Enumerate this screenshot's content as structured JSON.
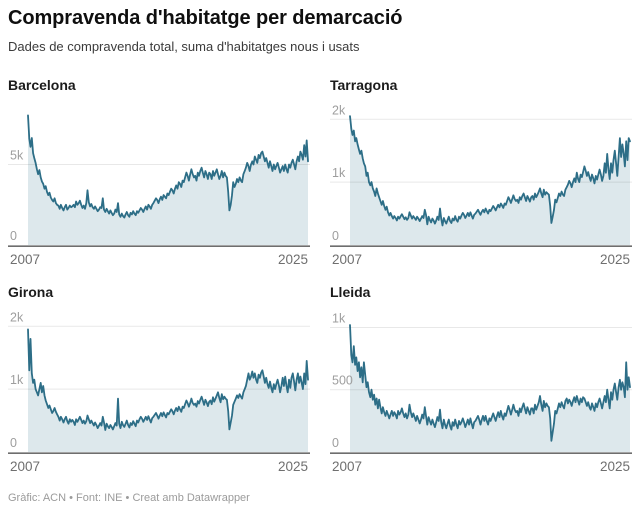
{
  "header": {
    "title": "Compravenda d'habitatge per demarcació",
    "subtitle": "Dades de compravenda total, suma d'habitatges nous i usats"
  },
  "footer": {
    "credit": "Gràfic: ACN • Font: INE • Creat amb Datawrapper"
  },
  "colors": {
    "line": "#2d6e87",
    "fill": "#dde8ec",
    "grid": "rgba(0,0,0,0.09)",
    "axis": "#6e6e6e",
    "tick_label": "#9e9e9e",
    "x_label": "#6f6f6f"
  },
  "chart_data": [
    {
      "type": "area",
      "title": "Barcelona",
      "x_start": "2007",
      "x_end": "2025",
      "x_range_years": [
        2007,
        2025
      ],
      "frequency": "monthly",
      "ymax": 8200,
      "yticks": [
        {
          "value": 5000,
          "label": "5k"
        },
        {
          "value": 0,
          "label": "0"
        }
      ],
      "values": [
        8050,
        6600,
        6100,
        6650,
        5700,
        5400,
        5100,
        4700,
        4400,
        4650,
        4200,
        3950,
        3800,
        3500,
        3650,
        3300,
        3100,
        3250,
        2950,
        2800,
        2700,
        2900,
        2600,
        2500,
        2450,
        2250,
        2500,
        2300,
        2150,
        2350,
        2500,
        2200,
        2300,
        2450,
        2350,
        2400,
        2500,
        2350,
        2700,
        2500,
        2600,
        2750,
        2500,
        2300,
        2450,
        2250,
        2600,
        3400,
        2650,
        2400,
        2550,
        2350,
        2250,
        2400,
        2250,
        2100,
        2200,
        2350,
        2300,
        2900,
        2200,
        2050,
        2250,
        2100,
        1950,
        2150,
        2000,
        1850,
        1950,
        2200,
        2050,
        2600,
        1900,
        1750,
        1950,
        1800,
        1700,
        1900,
        2050,
        1850,
        1750,
        2000,
        1900,
        2100,
        1950,
        1850,
        2100,
        2000,
        2150,
        2300,
        2200,
        2050,
        2250,
        2400,
        2200,
        2500,
        2400,
        2250,
        2500,
        2600,
        2750,
        2900,
        2800,
        2600,
        2850,
        3000,
        2800,
        3100,
        3000,
        2900,
        3200,
        3100,
        3300,
        3500,
        3400,
        3200,
        3500,
        3700,
        3500,
        3900,
        3800,
        3600,
        4000,
        3900,
        4200,
        4500,
        4300,
        4000,
        4400,
        4700,
        4400,
        4200,
        4300,
        4000,
        4500,
        4300,
        4600,
        4800,
        4500,
        4200,
        4600,
        4400,
        4100,
        4500,
        4400,
        4100,
        4600,
        4300,
        4500,
        4700,
        4400,
        4100,
        4300,
        4600,
        4200,
        4500,
        4300,
        4200,
        3300,
        2150,
        2500,
        3100,
        3900,
        3600,
        3800,
        4100,
        3900,
        4200,
        4000,
        3900,
        4400,
        4600,
        4800,
        5100,
        4900,
        4600,
        5000,
        5200,
        5000,
        5500,
        5300,
        5100,
        5600,
        5400,
        5700,
        5800,
        5500,
        5200,
        5400,
        5100,
        4800,
        5200,
        4900,
        4600,
        5000,
        4700,
        4900,
        5100,
        4800,
        4500,
        4700,
        4900,
        4600,
        5000,
        4700,
        4500,
        5000,
        4800,
        5100,
        5300,
        5000,
        4700,
        5200,
        5500,
        5200,
        5800,
        5600,
        5300,
        6200,
        5500,
        6500,
        5200
      ]
    },
    {
      "type": "area",
      "title": "Tarragona",
      "x_start": "2007",
      "x_end": "2025",
      "x_range_years": [
        2007,
        2025
      ],
      "frequency": "monthly",
      "ymax": 2100,
      "yticks": [
        {
          "value": 2000,
          "label": "2k"
        },
        {
          "value": 1000,
          "label": "1k"
        },
        {
          "value": 0,
          "label": "0"
        }
      ],
      "values": [
        2050,
        1850,
        1750,
        1820,
        1650,
        1700,
        1600,
        1520,
        1450,
        1500,
        1380,
        1300,
        1250,
        1100,
        1150,
        1000,
        950,
        1000,
        900,
        850,
        780,
        900,
        820,
        760,
        700,
        640,
        700,
        620,
        560,
        610,
        520,
        470,
        510,
        460,
        420,
        460,
        430,
        390,
        450,
        420,
        460,
        490,
        450,
        410,
        440,
        400,
        430,
        520,
        470,
        420,
        460,
        430,
        400,
        450,
        420,
        380,
        420,
        460,
        430,
        560,
        480,
        330,
        450,
        400,
        360,
        420,
        390,
        340,
        390,
        450,
        400,
        580,
        420,
        310,
        430,
        380,
        340,
        400,
        450,
        380,
        350,
        420,
        390,
        460,
        400,
        370,
        450,
        420,
        470,
        510,
        480,
        430,
        470,
        510,
        460,
        520,
        470,
        420,
        480,
        500,
        530,
        560,
        520,
        480,
        530,
        560,
        520,
        580,
        540,
        500,
        560,
        540,
        580,
        620,
        590,
        550,
        600,
        640,
        600,
        660,
        630,
        590,
        660,
        640,
        700,
        760,
        720,
        670,
        730,
        790,
        730,
        700,
        720,
        670,
        760,
        720,
        780,
        820,
        760,
        700,
        780,
        740,
        690,
        760,
        780,
        720,
        820,
        760,
        800,
        850,
        900,
        820,
        760,
        880,
        800,
        840,
        820,
        800,
        620,
        350,
        450,
        560,
        720,
        680,
        750,
        820,
        780,
        850,
        800,
        780,
        880,
        920,
        960,
        1020,
        980,
        920,
        1000,
        1060,
        1000,
        1150,
        1050,
        1000,
        1120,
        1080,
        1160,
        1250,
        1180,
        1100,
        1160,
        1080,
        1020,
        1120,
        1060,
        980,
        1100,
        1040,
        1120,
        1200,
        1120,
        1020,
        1100,
        1300,
        1150,
        1450,
        1200,
        1050,
        1300,
        1150,
        1350,
        1500,
        1300,
        1100,
        1400,
        1700,
        1400,
        1600,
        1450,
        1250,
        1650,
        1350,
        1700,
        1650
      ]
    },
    {
      "type": "area",
      "title": "Girona",
      "x_start": "2007",
      "x_end": "2025",
      "x_range_years": [
        2007,
        2025
      ],
      "frequency": "monthly",
      "ymax": 2100,
      "yticks": [
        {
          "value": 2000,
          "label": "2k"
        },
        {
          "value": 1000,
          "label": "1k"
        },
        {
          "value": 0,
          "label": "0"
        }
      ],
      "values": [
        1950,
        1300,
        1800,
        1250,
        1100,
        1150,
        1000,
        950,
        900,
        1000,
        1100,
        950,
        1050,
        900,
        820,
        760,
        700,
        740,
        680,
        620,
        650,
        700,
        640,
        600,
        560,
        500,
        560,
        520,
        470,
        520,
        560,
        490,
        450,
        520,
        480,
        510,
        480,
        430,
        520,
        480,
        520,
        560,
        510,
        460,
        500,
        450,
        490,
        580,
        520,
        460,
        500,
        460,
        420,
        470,
        430,
        380,
        420,
        460,
        420,
        560,
        470,
        350,
        450,
        410,
        380,
        430,
        400,
        360,
        410,
        460,
        420,
        850,
        450,
        380,
        480,
        430,
        400,
        450,
        500,
        430,
        390,
        460,
        430,
        490,
        450,
        410,
        500,
        470,
        520,
        560,
        530,
        480,
        520,
        560,
        510,
        570,
        520,
        470,
        540,
        560,
        590,
        620,
        580,
        530,
        580,
        620,
        570,
        630,
        590,
        550,
        620,
        600,
        640,
        680,
        650,
        600,
        660,
        700,
        650,
        720,
        680,
        640,
        720,
        700,
        760,
        820,
        780,
        720,
        780,
        850,
        780,
        750,
        770,
        720,
        810,
        770,
        830,
        880,
        820,
        750,
        830,
        790,
        730,
        800,
        820,
        760,
        870,
        800,
        850,
        900,
        950,
        860,
        790,
        920,
        840,
        880,
        850,
        830,
        650,
        360,
        470,
        580,
        750,
        800,
        850,
        900,
        860,
        920,
        880,
        850,
        950,
        1000,
        1050,
        1150,
        1250,
        1150,
        1200,
        1280,
        1180,
        1250,
        1150,
        1100,
        1230,
        1180,
        1260,
        1300,
        1200,
        1100,
        1180,
        1080,
        1020,
        1120,
        1020,
        950,
        1080,
        1000,
        1080,
        1150,
        1060,
        950,
        1050,
        1180,
        1050,
        1200,
        1050,
        950,
        1150,
        1020,
        1180,
        1250,
        1120,
        980,
        1150,
        1250,
        1100,
        1200,
        1100,
        1000,
        1250,
        1080,
        1450,
        1150
      ]
    },
    {
      "type": "area",
      "title": "Lleida",
      "x_start": "2007",
      "x_end": "2025",
      "x_range_years": [
        2007,
        2025
      ],
      "frequency": "monthly",
      "ymax": 1060,
      "yticks": [
        {
          "value": 1000,
          "label": "1k"
        },
        {
          "value": 500,
          "label": "500"
        },
        {
          "value": 0,
          "label": "0"
        }
      ],
      "values": [
        1020,
        780,
        720,
        850,
        700,
        760,
        650,
        720,
        600,
        680,
        560,
        720,
        620,
        520,
        560,
        480,
        440,
        500,
        420,
        460,
        380,
        430,
        350,
        420,
        360,
        310,
        360,
        320,
        290,
        330,
        300,
        270,
        300,
        330,
        290,
        320,
        300,
        270,
        330,
        300,
        320,
        350,
        310,
        280,
        310,
        270,
        300,
        380,
        320,
        280,
        310,
        280,
        250,
        290,
        260,
        230,
        260,
        300,
        270,
        360,
        290,
        220,
        280,
        250,
        220,
        260,
        230,
        200,
        240,
        280,
        250,
        340,
        240,
        190,
        260,
        220,
        190,
        230,
        260,
        210,
        180,
        240,
        210,
        260,
        220,
        190,
        250,
        220,
        240,
        270,
        240,
        200,
        230,
        260,
        220,
        270,
        230,
        190,
        240,
        250,
        270,
        290,
        260,
        220,
        260,
        290,
        250,
        290,
        250,
        220,
        270,
        250,
        280,
        310,
        280,
        250,
        290,
        320,
        280,
        330,
        290,
        260,
        310,
        290,
        330,
        370,
        340,
        300,
        340,
        380,
        340,
        320,
        330,
        290,
        350,
        320,
        360,
        390,
        350,
        310,
        360,
        330,
        300,
        350,
        350,
        310,
        380,
        340,
        370,
        400,
        450,
        380,
        330,
        410,
        360,
        390,
        370,
        360,
        270,
        90,
        160,
        230,
        330,
        310,
        350,
        390,
        360,
        400,
        370,
        350,
        410,
        430,
        390,
        420,
        400,
        370,
        410,
        440,
        400,
        450,
        410,
        380,
        430,
        400,
        440,
        430,
        400,
        370,
        400,
        360,
        340,
        390,
        360,
        330,
        390,
        360,
        400,
        430,
        390,
        350,
        400,
        450,
        400,
        500,
        420,
        350,
        480,
        420,
        500,
        550,
        480,
        420,
        520,
        580,
        500,
        560,
        520,
        440,
        720,
        500,
        600,
        520
      ]
    }
  ]
}
